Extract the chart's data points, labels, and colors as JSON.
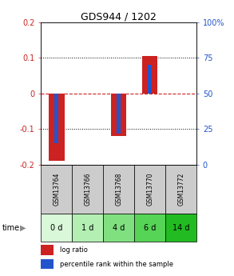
{
  "title": "GDS944 / 1202",
  "samples": [
    "GSM13764",
    "GSM13766",
    "GSM13768",
    "GSM13770",
    "GSM13772"
  ],
  "time_labels": [
    "0 d",
    "1 d",
    "4 d",
    "6 d",
    "14 d"
  ],
  "log_ratio": [
    -0.19,
    0.0,
    -0.12,
    0.105,
    0.0
  ],
  "percentile_rank": [
    15,
    50,
    22,
    70,
    50
  ],
  "ylim_left": [
    -0.2,
    0.2
  ],
  "ylim_right": [
    0,
    100
  ],
  "left_yticks": [
    -0.2,
    -0.1,
    0,
    0.1,
    0.2
  ],
  "right_yticks": [
    0,
    25,
    50,
    75,
    100
  ],
  "right_yticklabels": [
    "0",
    "25",
    "50",
    "75",
    "100%"
  ],
  "log_ratio_color": "#cc2222",
  "percentile_color": "#2255cc",
  "zero_line_color": "#cc2222",
  "sample_box_color": "#cccccc",
  "time_box_colors": [
    "#d9f7d9",
    "#b3efb3",
    "#80e080",
    "#55d455",
    "#22bb22"
  ],
  "legend_log_ratio": "log ratio",
  "legend_percentile": "percentile rank within the sample"
}
